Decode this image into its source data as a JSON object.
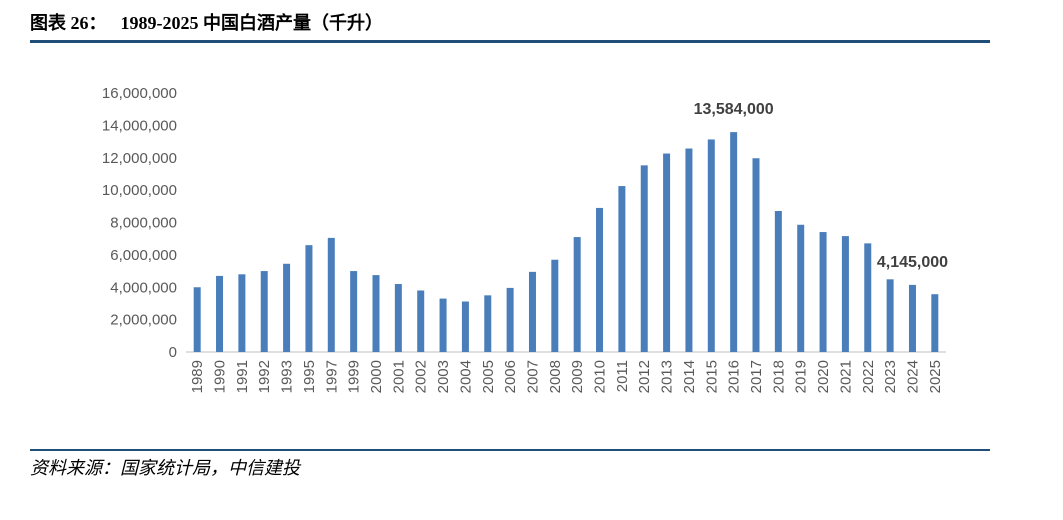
{
  "header": {
    "figure_number": "图表 26：",
    "title": "1989-2025 中国白酒产量（千升）",
    "rule_color": "#1f4e79"
  },
  "footer": {
    "source": "资料来源：国家统计局，中信建投"
  },
  "chart_data": {
    "type": "bar",
    "title": "1989-2025 中国白酒产量（千升）",
    "xlabel": "",
    "ylabel": "",
    "ylim": [
      0,
      16000000
    ],
    "yticks": [
      0,
      2000000,
      4000000,
      6000000,
      8000000,
      10000000,
      12000000,
      14000000,
      16000000
    ],
    "ytick_labels": [
      "0",
      "2,000,000",
      "4,000,000",
      "6,000,000",
      "8,000,000",
      "10,000,000",
      "12,000,000",
      "14,000,000",
      "16,000,000"
    ],
    "grid": false,
    "bar_color": "#4a7ebb",
    "categories": [
      "1989",
      "1990",
      "1991",
      "1992",
      "1993",
      "1995",
      "1997",
      "1999",
      "2000",
      "2001",
      "2002",
      "2003",
      "2004",
      "2005",
      "2006",
      "2007",
      "2008",
      "2009",
      "2010",
      "2011",
      "2012",
      "2013",
      "2014",
      "2015",
      "2016",
      "2017",
      "2018",
      "2019",
      "2020",
      "2021",
      "2022",
      "2023",
      "2024",
      "2025"
    ],
    "values": [
      4000000,
      4700000,
      4800000,
      5000000,
      5450000,
      6600000,
      7050000,
      5000000,
      4750000,
      4200000,
      3800000,
      3300000,
      3120000,
      3500000,
      3960000,
      4950000,
      5700000,
      7100000,
      8900000,
      10250000,
      11530000,
      12260000,
      12570000,
      13130000,
      13584000,
      11970000,
      8710000,
      7860000,
      7410000,
      7160000,
      6710000,
      4490000,
      4145000,
      3570000
    ],
    "annotations": [
      {
        "category": "2016",
        "label": "13,584,000"
      },
      {
        "category": "2024",
        "label": "4,145,000"
      }
    ]
  }
}
